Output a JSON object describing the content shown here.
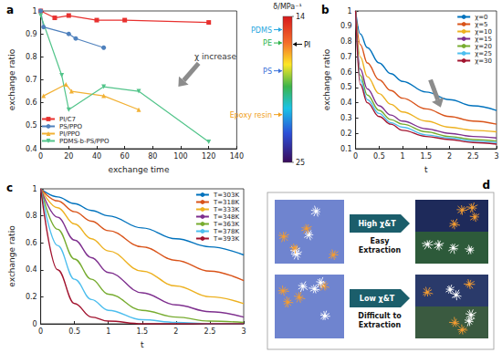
{
  "chart_data": [
    {
      "title": "a",
      "type": "line",
      "x_label": "exchange time",
      "y_label": "exchange ratio",
      "xlim": [
        0,
        140
      ],
      "xticks": [
        0,
        20,
        40,
        60,
        80,
        100,
        120,
        140
      ],
      "ylim": [
        0.4,
        1
      ],
      "yticks": [
        0.4,
        0.5,
        0.6,
        0.7,
        0.8,
        0.9,
        1
      ],
      "grid": false,
      "legend": "lower left",
      "annotations": [
        "χ increase"
      ],
      "series": [
        {
          "name": "PI/C7",
          "color": "#e8312f",
          "marker": "square",
          "x": [
            0,
            10,
            20,
            40,
            60,
            120
          ],
          "values": [
            1.0,
            0.97,
            0.98,
            0.96,
            0.96,
            0.95
          ]
        },
        {
          "name": "PS/PPO",
          "color": "#4f81bd",
          "marker": "circle",
          "x": [
            0,
            2,
            20,
            25,
            45
          ],
          "values": [
            1.0,
            0.93,
            0.9,
            0.88,
            0.84
          ]
        },
        {
          "name": "PI/PPO",
          "color": "#f2b134",
          "marker": "triangle",
          "x": [
            2,
            18,
            22,
            45,
            70
          ],
          "values": [
            0.63,
            0.68,
            0.65,
            0.63,
            0.57
          ]
        },
        {
          "name": "PDMS-b-PS/PPO",
          "color": "#52c48a",
          "marker": "triangle-down",
          "x": [
            0,
            15,
            20,
            45,
            70,
            120
          ],
          "values": [
            0.98,
            0.72,
            0.57,
            0.67,
            0.65,
            0.43
          ]
        }
      ]
    },
    {
      "title": "b",
      "type": "line",
      "x_label": "t",
      "y_label": "exchange ratio",
      "xlim": [
        0,
        3
      ],
      "xticks": [
        0,
        0.5,
        1,
        1.5,
        2,
        2.5,
        3
      ],
      "ylim": [
        0.1,
        1
      ],
      "yticks": [
        0.1,
        0.2,
        0.3,
        0.4,
        0.5,
        0.6,
        0.7,
        0.8,
        0.9,
        1
      ],
      "grid": false,
      "legend": "upper right",
      "x": [
        0,
        0.1,
        0.25,
        0.5,
        0.75,
        1,
        1.5,
        2,
        2.5,
        3
      ],
      "series": [
        {
          "name": "χ=0",
          "color": "#0072bd",
          "values": [
            1.0,
            0.85,
            0.76,
            0.66,
            0.59,
            0.54,
            0.47,
            0.42,
            0.38,
            0.35
          ]
        },
        {
          "name": "χ=5",
          "color": "#d95319",
          "values": [
            1.0,
            0.78,
            0.66,
            0.55,
            0.48,
            0.43,
            0.36,
            0.31,
            0.28,
            0.26
          ]
        },
        {
          "name": "χ=10",
          "color": "#edb120",
          "values": [
            1.0,
            0.7,
            0.57,
            0.46,
            0.39,
            0.34,
            0.28,
            0.24,
            0.22,
            0.21
          ]
        },
        {
          "name": "χ=15",
          "color": "#7e2f8e",
          "values": [
            1.0,
            0.62,
            0.49,
            0.38,
            0.32,
            0.28,
            0.23,
            0.2,
            0.18,
            0.17
          ]
        },
        {
          "name": "χ=20",
          "color": "#77ac30",
          "values": [
            1.0,
            0.58,
            0.45,
            0.35,
            0.29,
            0.26,
            0.21,
            0.18,
            0.16,
            0.15
          ]
        },
        {
          "name": "χ=25",
          "color": "#4dbeee",
          "values": [
            1.0,
            0.55,
            0.42,
            0.33,
            0.27,
            0.24,
            0.19,
            0.17,
            0.15,
            0.14
          ]
        },
        {
          "name": "χ=30",
          "color": "#a2142f",
          "values": [
            1.0,
            0.52,
            0.4,
            0.31,
            0.26,
            0.22,
            0.18,
            0.16,
            0.14,
            0.13
          ]
        }
      ]
    },
    {
      "title": "c",
      "type": "line",
      "x_label": "t",
      "y_label": "exchange ratio",
      "xlim": [
        0,
        3
      ],
      "xticks": [
        0,
        0.5,
        1,
        1.5,
        2,
        2.5,
        3
      ],
      "ylim": [
        0,
        1
      ],
      "yticks": [
        0,
        0.2,
        0.4,
        0.6,
        0.8,
        1
      ],
      "grid": false,
      "legend": "upper right",
      "x": [
        0,
        0.25,
        0.5,
        0.75,
        1,
        1.5,
        2,
        2.5,
        3
      ],
      "series": [
        {
          "name": "T=303K",
          "color": "#0072bd",
          "values": [
            1.0,
            0.94,
            0.89,
            0.84,
            0.8,
            0.71,
            0.63,
            0.57,
            0.51
          ]
        },
        {
          "name": "T=318K",
          "color": "#d95319",
          "values": [
            1.0,
            0.91,
            0.83,
            0.76,
            0.69,
            0.57,
            0.47,
            0.39,
            0.32
          ]
        },
        {
          "name": "T=333K",
          "color": "#edb120",
          "values": [
            1.0,
            0.86,
            0.74,
            0.63,
            0.54,
            0.39,
            0.28,
            0.2,
            0.15
          ]
        },
        {
          "name": "T=348K",
          "color": "#7e2f8e",
          "values": [
            1.0,
            0.79,
            0.62,
            0.49,
            0.38,
            0.23,
            0.14,
            0.09,
            0.05
          ]
        },
        {
          "name": "T=363K",
          "color": "#77ac30",
          "values": [
            1.0,
            0.7,
            0.48,
            0.33,
            0.22,
            0.1,
            0.05,
            0.02,
            0.01
          ]
        },
        {
          "name": "T=378K",
          "color": "#4dbeee",
          "values": [
            1.0,
            0.58,
            0.33,
            0.18,
            0.1,
            0.03,
            0.01,
            0.0,
            0.0
          ]
        },
        {
          "name": "T=393K",
          "color": "#a2142f",
          "values": [
            1.0,
            0.4,
            0.15,
            0.05,
            0.02,
            0.0,
            0.0,
            0.0,
            0.0
          ]
        }
      ]
    }
  ],
  "colorbar": {
    "label": "δ/MPa⁻¹",
    "ylim": [
      14,
      25
    ],
    "yticks": [
      14,
      25
    ],
    "markers_left": [
      {
        "label": "PDMS",
        "value": 15.0,
        "color": "#29a8e0"
      },
      {
        "label": "PE",
        "value": 16.0,
        "color": "#2db34a"
      },
      {
        "label": "PS",
        "value": 18.1,
        "color": "#3a6fd8"
      },
      {
        "label": "Epoxy resin",
        "value": 21.4,
        "color": "#f0a020"
      }
    ],
    "markers_right": [
      {
        "label": "PI",
        "value": 16.1,
        "color": "#000000"
      }
    ]
  },
  "diagram": {
    "title": "d",
    "rows": [
      {
        "condition": "High χ&T",
        "outcome": [
          "Easy",
          "Extraction"
        ]
      },
      {
        "condition": "Low χ&T",
        "outcome": [
          "Difficult to",
          "Extraction"
        ]
      }
    ]
  }
}
